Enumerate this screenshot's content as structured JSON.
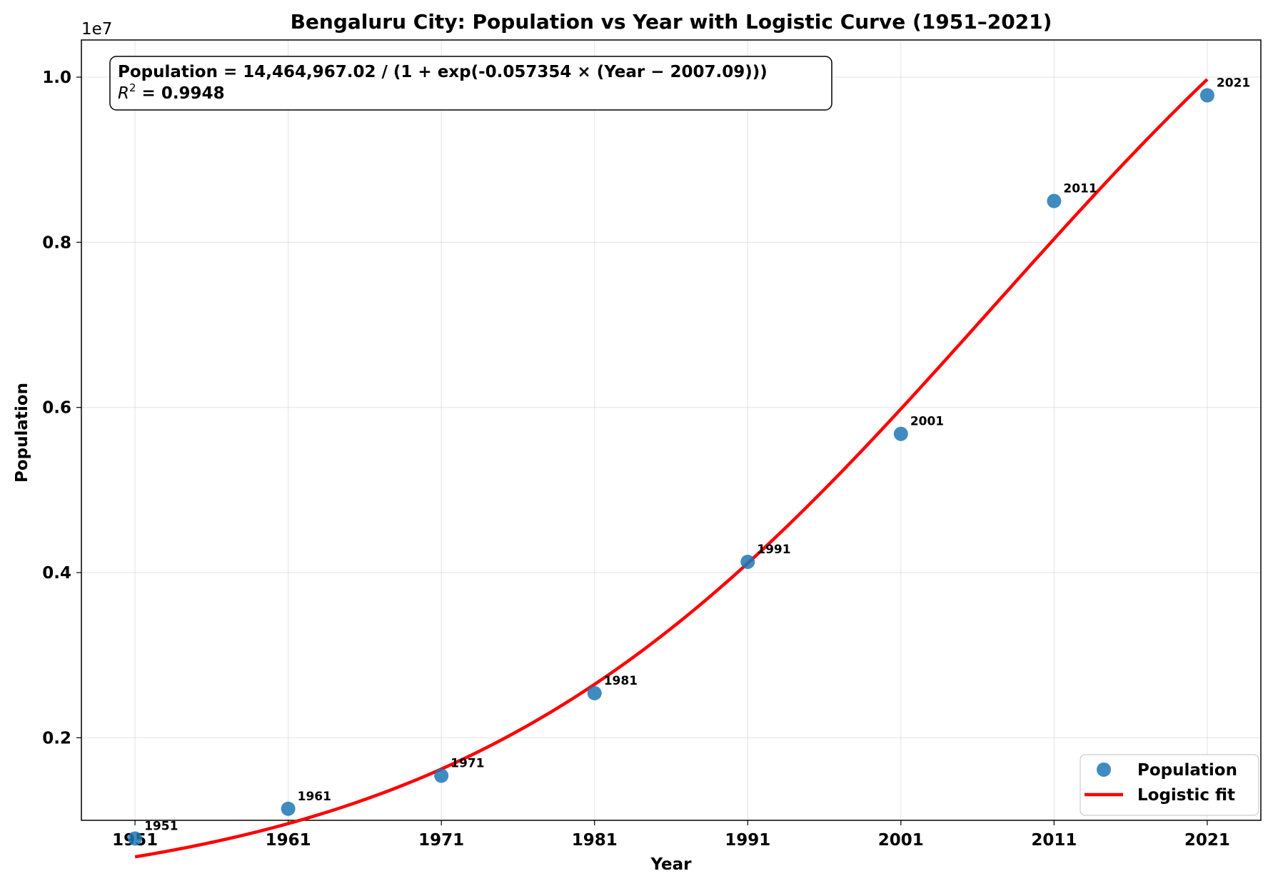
{
  "chart_data": {
    "type": "scatter",
    "title": "Bengaluru City: Population vs Year with Logistic Curve (1951–2021)",
    "xlabel": "Year",
    "ylabel": "Population",
    "y_offset_label": "1e7",
    "x_ticks": [
      1951,
      1961,
      1971,
      1981,
      1991,
      2001,
      2011,
      2021
    ],
    "x_tick_labels": [
      "1951",
      "1961",
      "1971",
      "1981",
      "1991",
      "2001",
      "2011",
      "2021"
    ],
    "y_ticks": [
      0.2,
      0.4,
      0.6,
      0.8,
      1.0
    ],
    "y_tick_labels": [
      "0.2",
      "0.4",
      "0.6",
      "0.8",
      "1.0"
    ],
    "xlim": [
      1947.5,
      2024.5
    ],
    "ylim": [
      0.1,
      1.045
    ],
    "grid": true,
    "series": [
      {
        "name": "Population",
        "kind": "scatter",
        "color": "#1f77b4",
        "x": [
          1951,
          1961,
          1971,
          1981,
          1991,
          2001,
          2011,
          2021
        ],
        "y": [
          0.078,
          0.114,
          0.154,
          0.254,
          0.413,
          0.568,
          0.85,
          0.978
        ],
        "point_labels": [
          "1951",
          "1961",
          "1971",
          "1981",
          "1991",
          "2001",
          "2011",
          "2021"
        ]
      },
      {
        "name": "Logistic fit",
        "kind": "line",
        "color": "#ff0000",
        "model": {
          "K": 1.446496702,
          "r": 0.057354,
          "t0": 2007.09
        },
        "x_range": [
          1951,
          2021
        ]
      }
    ],
    "annotation": {
      "line1": "Population = 14,464,967.02 / (1 + exp(-0.057354 × (Year − 2007.09)))",
      "line2_prefix": "R",
      "line2_sup": "2",
      "line2_rest": " = 0.9948"
    },
    "legend": {
      "placement": "bottom-right",
      "entries": [
        "Population",
        "Logistic fit"
      ]
    }
  }
}
